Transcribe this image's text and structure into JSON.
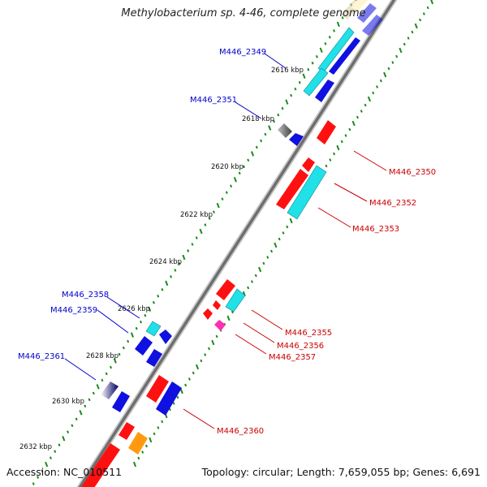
{
  "title": "Methylobacterium sp. 4-46, complete genome",
  "footer": {
    "accession": "Accession: NC_010511",
    "topology": "Topology: circular",
    "length": "Length: 7,659,055 bp",
    "genes": "Genes: 6,691"
  },
  "colors": {
    "backbone": "#7f7f7f",
    "tick": "#1a8a1a",
    "forward_label": "#0000cc",
    "reverse_label": "#cc0000",
    "gene_red": "#ff1010",
    "gene_blue": "#1010e0",
    "gene_cyan": "#20e0e8",
    "gene_gray": "#606060",
    "gene_orange": "#ff9a10",
    "gene_magenta": "#ff30b0",
    "gene_tan": "#d9cfa8"
  },
  "scale_ticks": [
    {
      "label": "2616 kbp"
    },
    {
      "label": "2618 kbp"
    },
    {
      "label": "2620 kbp"
    },
    {
      "label": "2622 kbp"
    },
    {
      "label": "2624 kbp"
    },
    {
      "label": "2626 kbp"
    },
    {
      "label": "2628 kbp"
    },
    {
      "label": "2630 kbp"
    },
    {
      "label": "2632 kbp"
    }
  ],
  "forward_genes": [
    {
      "label": "M446_2349"
    },
    {
      "label": "M446_2351"
    },
    {
      "label": "M446_2358"
    },
    {
      "label": "M446_2359"
    },
    {
      "label": "M446_2361"
    }
  ],
  "reverse_genes": [
    {
      "label": "M446_2350"
    },
    {
      "label": "M446_2352"
    },
    {
      "label": "M446_2353"
    },
    {
      "label": "M446_2355"
    },
    {
      "label": "M446_2356"
    },
    {
      "label": "M446_2357"
    },
    {
      "label": "M446_2360"
    }
  ]
}
